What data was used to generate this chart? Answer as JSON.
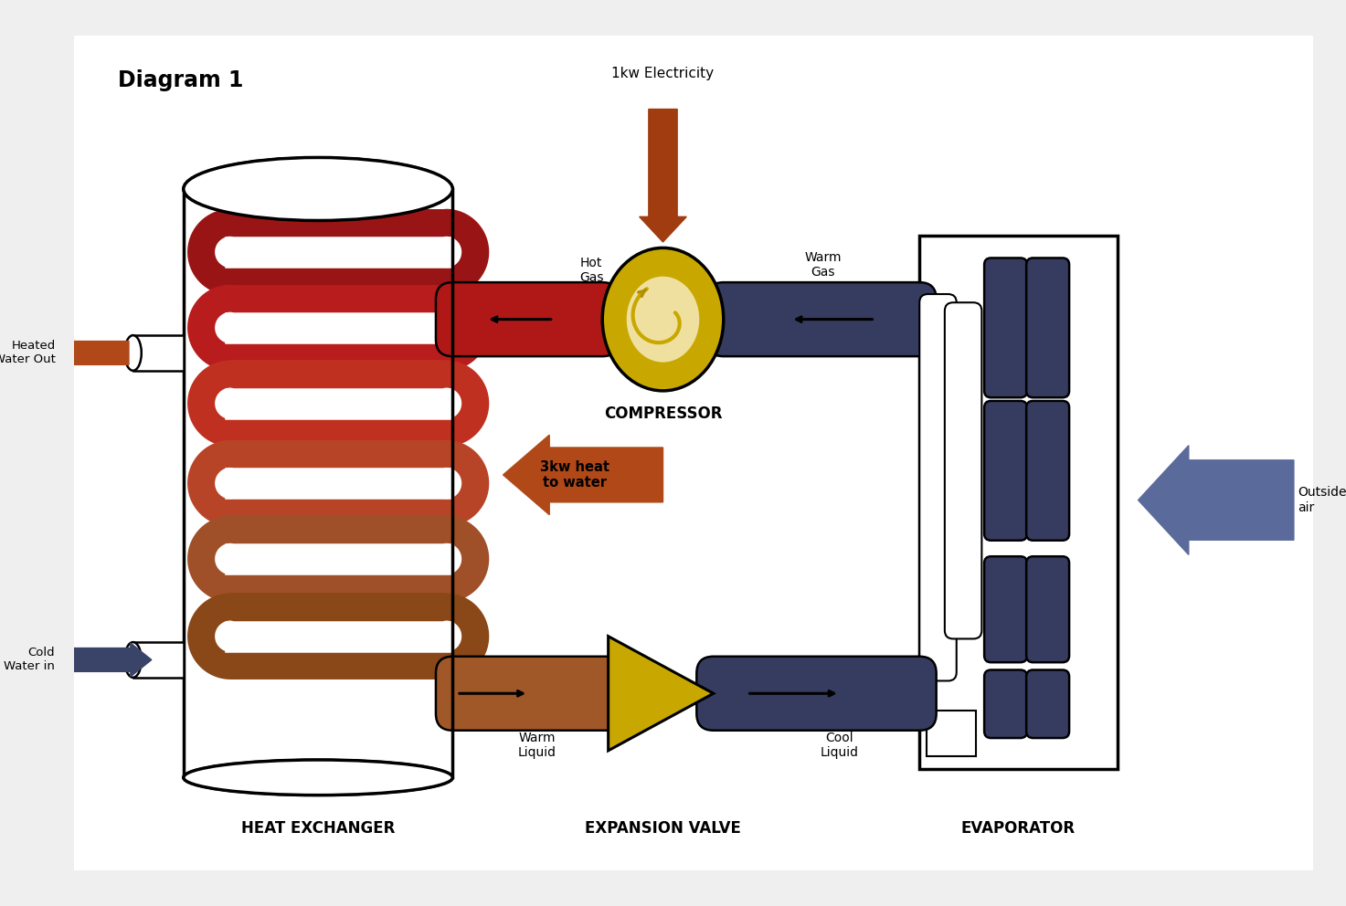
{
  "colors": {
    "hot_red": "#b01818",
    "mid_red": "#c03020",
    "red_orange": "#c84020",
    "brown_red": "#b85030",
    "copper": "#a05828",
    "dark_copper": "#885020",
    "dark_blue": "#363c60",
    "dark_blue2": "#3a4468",
    "slate_blue": "#4a5888",
    "gold": "#c8a800",
    "gold_dark": "#b09000",
    "cream": "#f0e0a0",
    "orange_brown": "#b04818",
    "elec_orange": "#a03c10",
    "outside_blue": "#5a6a9a",
    "black": "#111111",
    "white": "#ffffff",
    "bg": "#efefef"
  },
  "labels": {
    "diagram_title": "Diagram 1",
    "electricity": "1kw Electricity",
    "compressor": "COMPRESSOR",
    "hot_gas": "Hot\nGas",
    "warm_gas": "Warm\nGas",
    "heated_water_out": "Heated\nWater Out",
    "cold_water_in": "Cold\nWater in",
    "heat_to_water": "3kw heat\nto water",
    "warm_liquid": "Warm\nLiquid",
    "cool_liquid": "Cool\nLiquid",
    "outside_air": "Outside\nair",
    "heat_exchanger": "HEAT EXCHANGER",
    "expansion_valve": "EXPANSION VALVE",
    "evaporator": "EVAPORATOR"
  }
}
